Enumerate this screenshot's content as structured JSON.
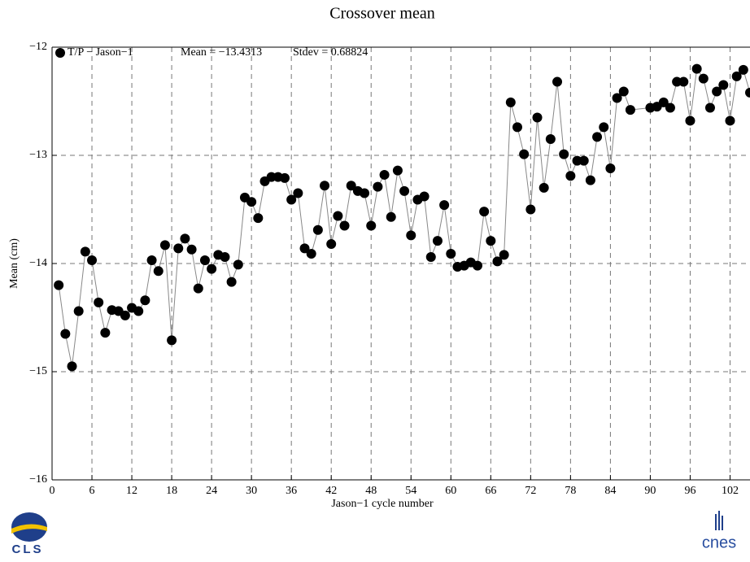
{
  "chart_data": {
    "type": "line",
    "title": "Crossover mean",
    "x_label": "Jason−1 cycle number",
    "y_label": "Mean (cm)",
    "annotations": [
      "Mean = −13.4313",
      "Stdev = 0.68824"
    ],
    "logos": [
      "CLS",
      "cnes"
    ],
    "xlim": [
      0,
      105
    ],
    "ylim": [
      -16,
      -12
    ],
    "xticks": [
      0,
      6,
      12,
      18,
      24,
      30,
      36,
      42,
      48,
      54,
      60,
      66,
      72,
      78,
      84,
      90,
      96,
      102
    ],
    "yticks": [
      {
        "value": -12,
        "label": "−12"
      },
      {
        "value": -13,
        "label": "−13"
      },
      {
        "value": -14,
        "label": "−14"
      },
      {
        "value": -15,
        "label": "−15"
      },
      {
        "value": -16,
        "label": "−16"
      }
    ],
    "grid": true,
    "legend": "top-left",
    "x": [
      1,
      2,
      3,
      4,
      5,
      6,
      7,
      8,
      9,
      10,
      11,
      12,
      13,
      14,
      15,
      16,
      17,
      18,
      19,
      20,
      21,
      22,
      23,
      24,
      25,
      26,
      27,
      28,
      29,
      30,
      31,
      32,
      33,
      34,
      35,
      36,
      37,
      38,
      39,
      40,
      41,
      42,
      43,
      44,
      45,
      46,
      47,
      48,
      49,
      50,
      51,
      52,
      53,
      54,
      55,
      56,
      57,
      58,
      59,
      60,
      61,
      62,
      63,
      64,
      65,
      66,
      67,
      68,
      69,
      70,
      71,
      72,
      73,
      74,
      75,
      76,
      77,
      78,
      79,
      80,
      81,
      82,
      83,
      84,
      85,
      86,
      87,
      90,
      91,
      92,
      93,
      94,
      95,
      96,
      97,
      98,
      99,
      100,
      101,
      102,
      103,
      104,
      105
    ],
    "series": [
      {
        "name": "T/P − Jason−1",
        "color": "#000000",
        "line_color": "#888888",
        "values": [
          -14.2,
          -14.65,
          -14.95,
          -14.44,
          -13.89,
          -13.97,
          -14.36,
          -14.64,
          -14.43,
          -14.44,
          -14.48,
          -14.41,
          -14.44,
          -14.34,
          -13.97,
          -14.07,
          -13.83,
          -14.71,
          -13.86,
          -13.77,
          -13.87,
          -14.23,
          -13.97,
          -14.05,
          -13.92,
          -13.94,
          -14.17,
          -14.01,
          -13.39,
          -13.43,
          -13.58,
          -13.24,
          -13.2,
          -13.2,
          -13.21,
          -13.41,
          -13.35,
          -13.86,
          -13.91,
          -13.69,
          -13.28,
          -13.82,
          -13.56,
          -13.65,
          -13.28,
          -13.33,
          -13.35,
          -13.65,
          -13.29,
          -13.18,
          -13.57,
          -13.14,
          -13.33,
          -13.74,
          -13.41,
          -13.38,
          -13.94,
          -13.79,
          -13.46,
          -13.91,
          -14.03,
          -14.02,
          -13.99,
          -14.02,
          -13.52,
          -13.79,
          -13.98,
          -13.92,
          -12.51,
          -12.74,
          -12.99,
          -13.5,
          -12.65,
          -13.3,
          -12.85,
          -12.32,
          -12.99,
          -13.19,
          -13.05,
          -13.05,
          -13.23,
          -12.83,
          -12.74,
          -13.12,
          -12.47,
          -12.41,
          -12.58,
          -12.56,
          -12.55,
          -12.51,
          -12.56,
          -12.32,
          -12.32,
          -12.68,
          -12.2,
          -12.29,
          -12.56,
          -12.41,
          -12.35,
          -12.68,
          -12.27,
          -12.21,
          -12.42
        ]
      }
    ]
  }
}
